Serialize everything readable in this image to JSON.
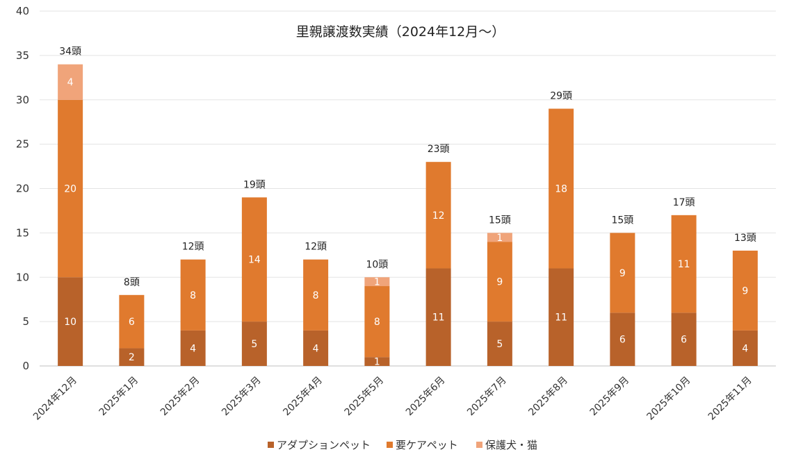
{
  "chart_data": {
    "type": "bar",
    "stacked": true,
    "title": "里親譲渡数実績（2024年12月～）",
    "xlabel": "",
    "ylabel": "",
    "ylim": [
      0,
      40
    ],
    "yticks": [
      0,
      5,
      10,
      15,
      20,
      25,
      30,
      35,
      40
    ],
    "grid": true,
    "legend_position": "bottom",
    "categories": [
      "2024年12月",
      "2025年1月",
      "2025年2月",
      "2025年3月",
      "2025年4月",
      "2025年5月",
      "2025年6月",
      "2025年7月",
      "2025年8月",
      "2025年9月",
      "2025年10月",
      "2025年11月"
    ],
    "series": [
      {
        "name": "アダプションペット",
        "color": "#b8622a",
        "values": [
          10,
          2,
          4,
          5,
          4,
          1,
          11,
          5,
          11,
          6,
          6,
          4
        ]
      },
      {
        "name": "要ケアペット",
        "color": "#e07a2e",
        "values": [
          20,
          6,
          8,
          14,
          8,
          8,
          12,
          9,
          18,
          9,
          11,
          9
        ]
      },
      {
        "name": "保護犬・猫",
        "color": "#f0a47a",
        "values": [
          4,
          0,
          0,
          0,
          0,
          1,
          0,
          1,
          0,
          0,
          0,
          0
        ]
      }
    ],
    "totals": [
      "34頭",
      "8頭",
      "12頭",
      "19頭",
      "12頭",
      "10頭",
      "23頭",
      "15頭",
      "29頭",
      "15頭",
      "17頭",
      "13頭"
    ]
  }
}
